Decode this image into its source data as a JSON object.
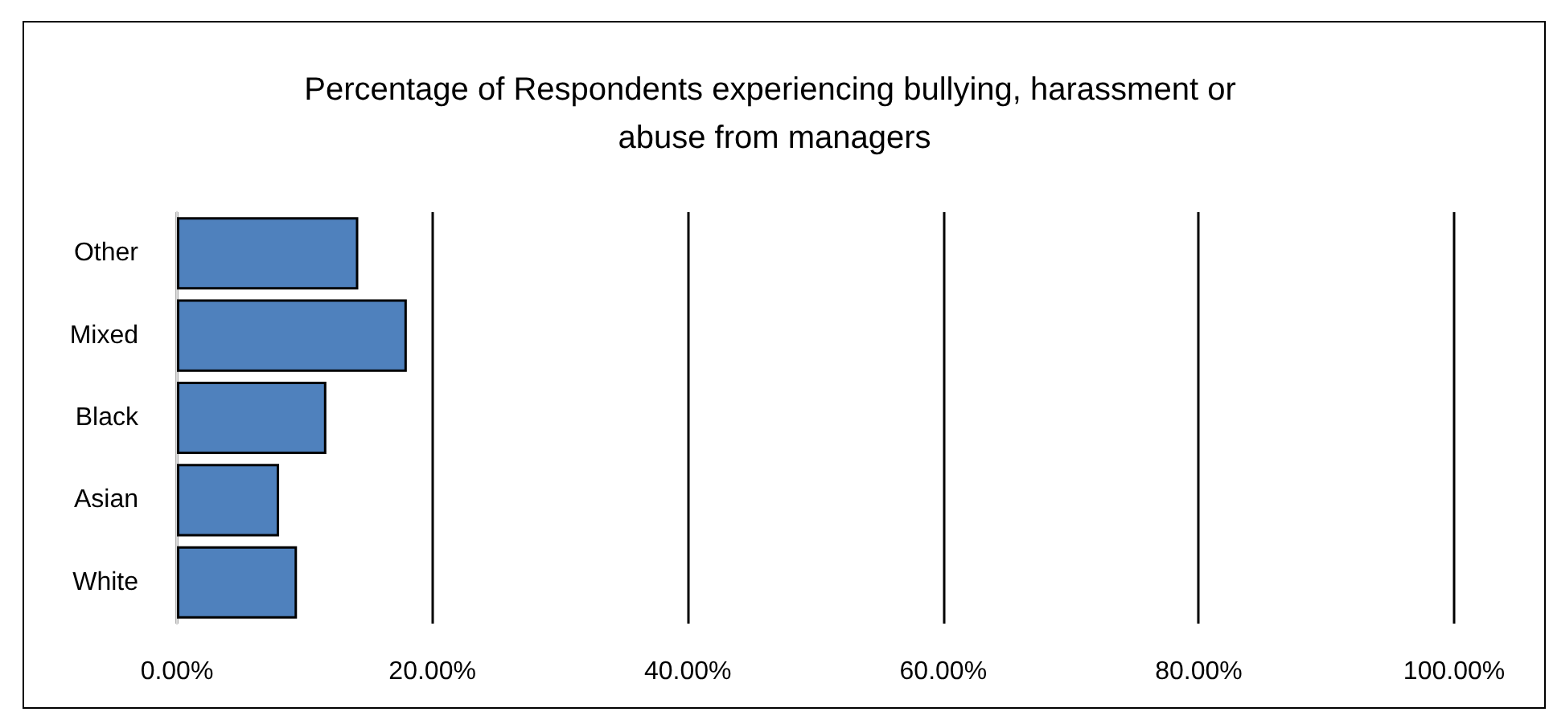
{
  "chart_data": {
    "type": "bar",
    "orientation": "horizontal",
    "title": "Percentage of Respondents experiencing bullying, harassment or abuse from managers",
    "categories": [
      "Other",
      "Mixed",
      "Black",
      "Asian",
      "White"
    ],
    "values": [
      14.2,
      18.0,
      11.7,
      8.0,
      9.4
    ],
    "color": "#4f81bd",
    "xlim": [
      0,
      100
    ],
    "xticks": [
      {
        "value": 0,
        "label": "0.00%"
      },
      {
        "value": 20,
        "label": "20.00%"
      },
      {
        "value": 40,
        "label": "40.00%"
      },
      {
        "value": 60,
        "label": "60.00%"
      },
      {
        "value": 80,
        "label": "80.00%"
      },
      {
        "value": 100,
        "label": "100.00%"
      }
    ],
    "grid": "x"
  }
}
